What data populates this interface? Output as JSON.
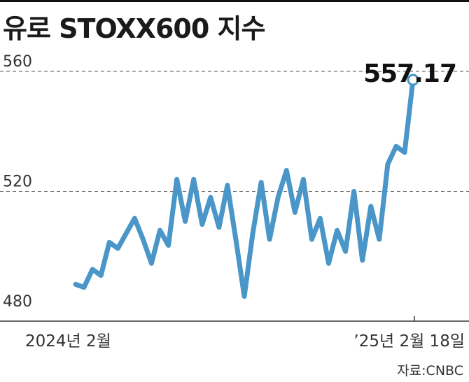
{
  "title": "유로 STOXX600 지수",
  "source": "자료:CNBC",
  "chart_data": {
    "type": "line",
    "title": "유로 STOXX600 지수",
    "x_start_label": "2024년 2월",
    "x_end_label": "’25년 2월 18일",
    "ylim": [
      480,
      560
    ],
    "yticks": [
      480,
      520,
      560
    ],
    "grid": "dashed at 520 and 560",
    "last_value_label": "557.17",
    "color": "#4a96c8",
    "values": [
      489,
      488,
      494,
      492,
      503,
      501,
      506,
      511,
      504,
      496,
      507,
      502,
      524,
      510,
      524,
      509,
      518,
      508,
      522,
      504,
      485,
      506,
      523,
      504,
      518,
      527,
      513,
      524,
      504,
      511,
      496,
      507,
      500,
      520,
      497,
      515,
      504,
      529,
      535,
      533,
      557.17
    ]
  }
}
